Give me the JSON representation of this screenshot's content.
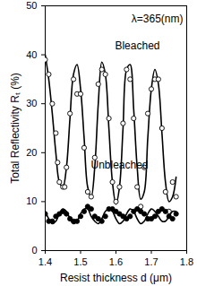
{
  "chart_data": {
    "type": "scatter",
    "xlabel": "Resist thickness d (μm)",
    "ylabel": "Total Reflectivity Rₜ (%)",
    "xlim": [
      1.4,
      1.8
    ],
    "xticks": [
      1.4,
      1.5,
      1.6,
      1.7,
      1.8
    ],
    "ylim": [
      0,
      50
    ],
    "yticks": [
      0,
      10,
      20,
      30,
      40,
      50
    ],
    "grid": false,
    "annotations": [
      {
        "text": "λ=365(nm)"
      }
    ],
    "series": [
      {
        "name": "Bleached",
        "color": "#000000",
        "marker": "open circle",
        "line_style": "solid",
        "x": [
          1.4,
          1.41,
          1.42,
          1.43,
          1.435,
          1.44,
          1.45,
          1.455,
          1.46,
          1.47,
          1.48,
          1.49,
          1.5,
          1.51,
          1.52,
          1.53,
          1.54,
          1.55,
          1.56,
          1.57,
          1.58,
          1.59,
          1.6,
          1.61,
          1.62,
          1.63,
          1.64,
          1.65,
          1.66,
          1.67,
          1.68,
          1.69,
          1.7,
          1.71,
          1.72,
          1.73,
          1.74,
          1.75,
          1.76,
          1.77
        ],
        "values": [
          39,
          36,
          30,
          24,
          18,
          14,
          13,
          13,
          17,
          28,
          35,
          32,
          32,
          21,
          12,
          11,
          19,
          34,
          37,
          36,
          27,
          14,
          10,
          13,
          26,
          37,
          35,
          27,
          13,
          9,
          17,
          28,
          33,
          35,
          35,
          25,
          12,
          8,
          14,
          11
        ],
        "fit_x": [
          1.4,
          1.41,
          1.42,
          1.43,
          1.44,
          1.45,
          1.46,
          1.47,
          1.48,
          1.49,
          1.5,
          1.51,
          1.52,
          1.53,
          1.54,
          1.55,
          1.56,
          1.57,
          1.58,
          1.59,
          1.6,
          1.61,
          1.62,
          1.63,
          1.64,
          1.65,
          1.66,
          1.67,
          1.68,
          1.69,
          1.7,
          1.71,
          1.72,
          1.73,
          1.74,
          1.75,
          1.76,
          1.77
        ],
        "fit_values": [
          40,
          35,
          28,
          20,
          14,
          13,
          17,
          27,
          36,
          38,
          33,
          23,
          13,
          11,
          17,
          30,
          38.5,
          36,
          25,
          14,
          9.5,
          13,
          25,
          37,
          38,
          29,
          17,
          10.5,
          12,
          23,
          33,
          37,
          34,
          24,
          14,
          10,
          11,
          15
        ]
      },
      {
        "name": "Unbleached",
        "color": "#000000",
        "marker": "filled circle",
        "line_style": "solid",
        "x": [
          1.4,
          1.41,
          1.42,
          1.43,
          1.44,
          1.45,
          1.46,
          1.47,
          1.48,
          1.49,
          1.5,
          1.51,
          1.52,
          1.53,
          1.54,
          1.55,
          1.56,
          1.57,
          1.58,
          1.59,
          1.6,
          1.61,
          1.62,
          1.63,
          1.64,
          1.65,
          1.66,
          1.67,
          1.68,
          1.69,
          1.7,
          1.71,
          1.72,
          1.73,
          1.74,
          1.75,
          1.76,
          1.77
        ],
        "values": [
          7.5,
          6,
          6,
          7,
          7.5,
          8,
          7.5,
          6.5,
          6,
          6,
          7,
          8,
          9,
          8.5,
          7,
          6.5,
          6,
          7,
          8.5,
          8.5,
          8,
          7.5,
          7,
          6.5,
          7,
          8,
          8.5,
          8,
          7.5,
          6.5,
          6.5,
          7,
          8,
          8.5,
          8,
          7,
          6.5,
          7.5
        ],
        "fit_x": [
          1.4,
          1.41,
          1.42,
          1.43,
          1.44,
          1.45,
          1.46,
          1.47,
          1.48,
          1.49,
          1.5,
          1.51,
          1.52,
          1.53,
          1.54,
          1.55,
          1.56,
          1.57,
          1.58,
          1.59,
          1.6,
          1.61,
          1.62,
          1.63,
          1.64,
          1.65,
          1.66,
          1.67,
          1.68,
          1.69,
          1.7,
          1.71,
          1.72,
          1.73,
          1.74,
          1.75,
          1.76,
          1.77
        ],
        "fit_values": [
          8,
          6.5,
          5.5,
          6,
          7.5,
          8.5,
          8,
          6.5,
          5.5,
          6,
          7.5,
          8.5,
          8.5,
          7,
          6,
          5.5,
          6.5,
          8,
          8.5,
          8,
          6.5,
          5.5,
          6,
          7.5,
          8.5,
          8,
          6.5,
          5.5,
          6,
          7.5,
          8.5,
          8,
          7,
          6,
          6,
          7,
          8,
          8
        ]
      }
    ]
  }
}
